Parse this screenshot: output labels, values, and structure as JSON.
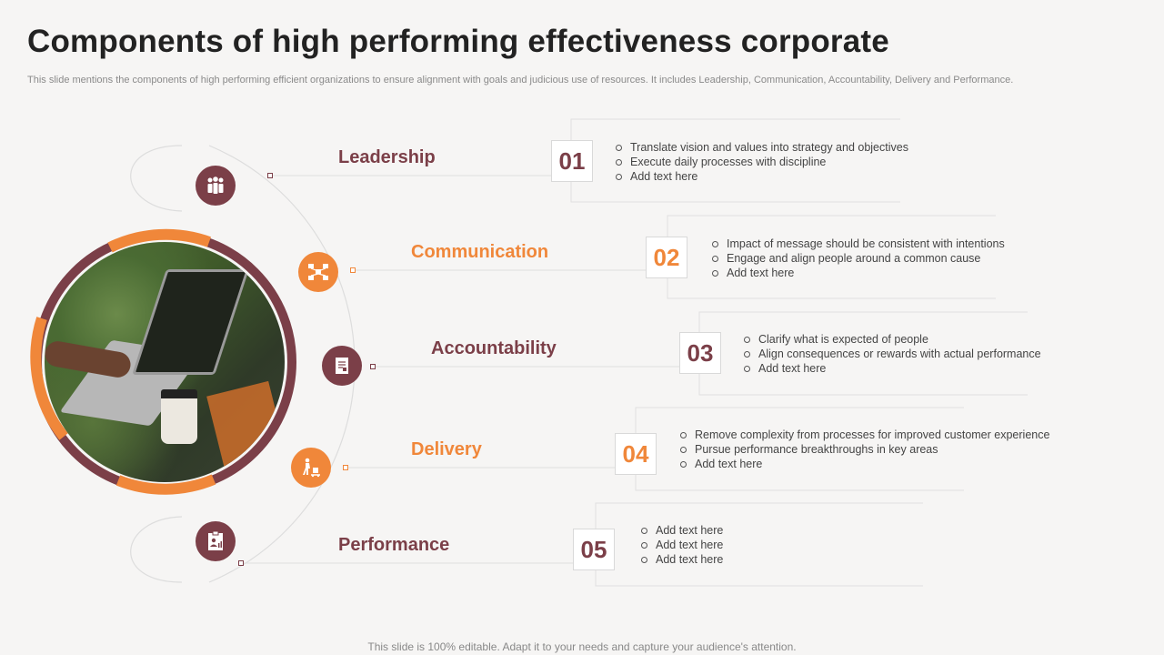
{
  "title": "Components of high performing effectiveness corporate",
  "subtitle": "This slide mentions the components of high performing efficient organizations to ensure alignment with goals and judicious use of resources. It includes Leadership, Communication, Accountability, Delivery and Performance.",
  "footer": "This slide is 100% editable. Adapt it to your needs and capture your audience's attention.",
  "colors": {
    "maroon": "#7b3f48",
    "orange": "#f0873a",
    "line": "#d6d6d6"
  },
  "items": [
    {
      "label": "Leadership",
      "number": "01",
      "color": "#7b3f48",
      "icon": "team-icon",
      "bullets": [
        "Translate vision and values into strategy and objectives",
        "Execute daily processes with discipline",
        "Add text here"
      ]
    },
    {
      "label": "Communication",
      "number": "02",
      "color": "#f0873a",
      "icon": "network-icon",
      "bullets": [
        "Impact of message should be consistent with intentions",
        "Engage and align people around a common cause",
        "Add text here"
      ]
    },
    {
      "label": "Accountability",
      "number": "03",
      "color": "#7b3f48",
      "icon": "document-icon",
      "bullets": [
        "Clarify what is expected of people",
        "Align consequences or rewards with actual performance",
        "Add text here"
      ]
    },
    {
      "label": "Delivery",
      "number": "04",
      "color": "#f0873a",
      "icon": "delivery-icon",
      "bullets": [
        "Remove  complexity from processes for improved  customer experience",
        "Pursue performance  breakthroughs in key areas",
        "Add text here"
      ]
    },
    {
      "label": "Performance",
      "number": "05",
      "color": "#7b3f48",
      "icon": "report-icon",
      "bullets": [
        "Add text here",
        "Add text here",
        "Add text here"
      ]
    }
  ]
}
